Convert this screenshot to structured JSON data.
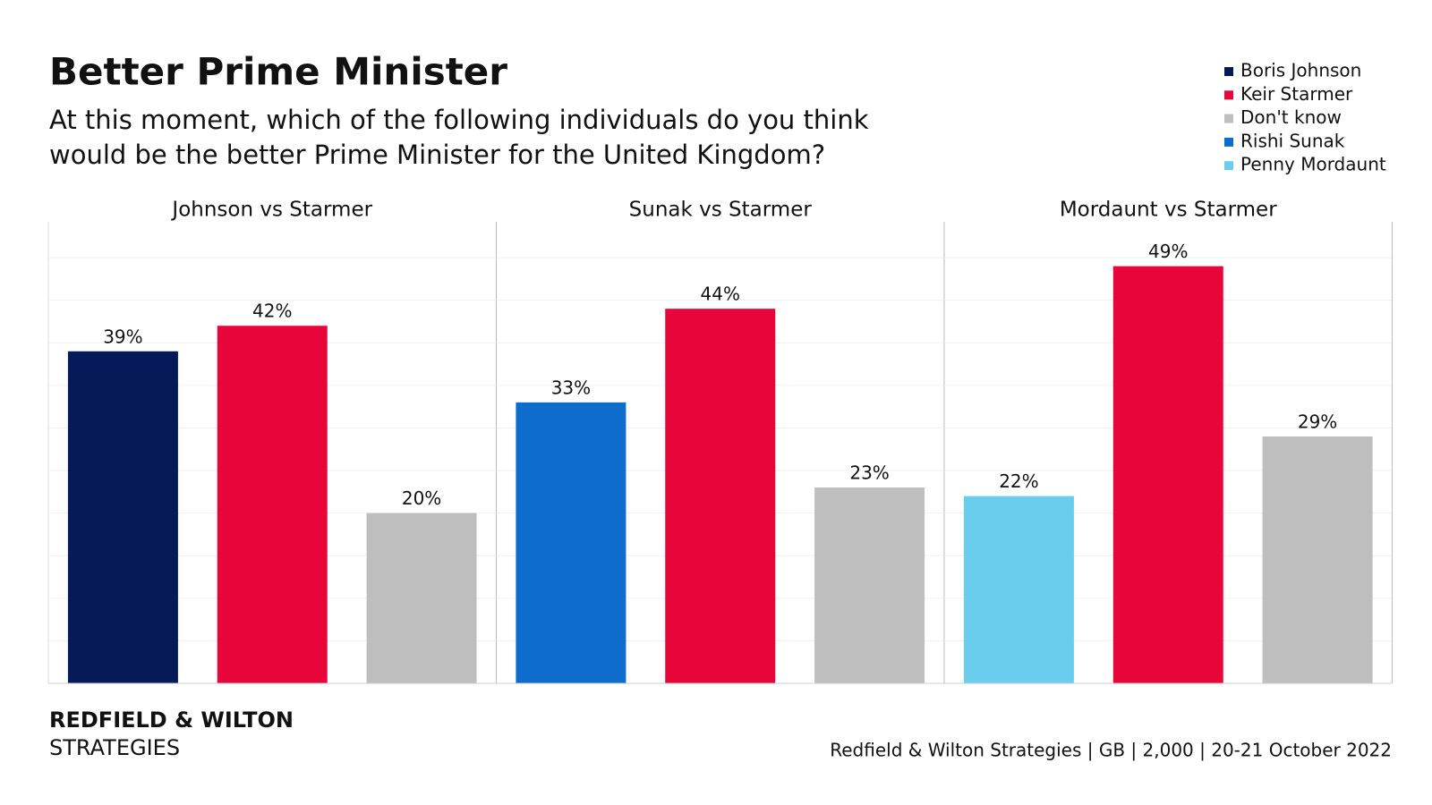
{
  "title": "Better Prime Minister",
  "subtitle": [
    "At this moment, which of the following individuals do you think",
    "would be the better Prime Minister for the United Kingdom?"
  ],
  "brand": [
    "REDFIELD & WILTON",
    "STRATEGIES"
  ],
  "source": "Redfield & Wilton Strategies | GB | 2,000 | 20-21 October 2022",
  "chart_data": [
    {
      "type": "bar",
      "title": "Johnson vs Starmer",
      "categories": [
        null
      ],
      "series": [
        {
          "name": "Boris Johnson",
          "color": "#061a5a",
          "values": [
            39
          ],
          "value_labels": [
            "39%"
          ]
        },
        {
          "name": "Keir Starmer",
          "color": "#e8053a",
          "values": [
            42
          ],
          "value_labels": [
            "42%"
          ]
        },
        {
          "name": "Don't know",
          "color": "#bfbebf",
          "values": [
            20
          ],
          "value_labels": [
            "20%"
          ]
        }
      ],
      "ylim": [
        0,
        54
      ],
      "yticks": [
        0,
        5,
        10,
        15,
        20,
        25,
        30,
        35,
        40,
        45,
        50
      ],
      "grid": true
    },
    {
      "type": "bar",
      "title": "Sunak vs Starmer",
      "categories": [
        null
      ],
      "series": [
        {
          "name": "Rishi Sunak",
          "color": "#0e6ccc",
          "values": [
            33
          ],
          "value_labels": [
            "33%"
          ]
        },
        {
          "name": "Keir Starmer",
          "color": "#e8053a",
          "values": [
            44
          ],
          "value_labels": [
            "44%"
          ]
        },
        {
          "name": "Don't know",
          "color": "#bfbebf",
          "values": [
            23
          ],
          "value_labels": [
            "23%"
          ]
        }
      ],
      "ylim": [
        0,
        54
      ],
      "yticks": [
        0,
        5,
        10,
        15,
        20,
        25,
        30,
        35,
        40,
        45,
        50
      ],
      "grid": true
    },
    {
      "type": "bar",
      "title": "Mordaunt vs Starmer",
      "categories": [
        null
      ],
      "series": [
        {
          "name": "Penny Mordaunt",
          "color": "#6acdee",
          "values": [
            22
          ],
          "value_labels": [
            "22%"
          ]
        },
        {
          "name": "Keir Starmer",
          "color": "#e8053a",
          "values": [
            49
          ],
          "value_labels": [
            "49%"
          ]
        },
        {
          "name": "Don't know",
          "color": "#bfbebf",
          "values": [
            29
          ],
          "value_labels": [
            "29%"
          ]
        }
      ],
      "ylim": [
        0,
        54
      ],
      "yticks": [
        0,
        5,
        10,
        15,
        20,
        25,
        30,
        35,
        40,
        45,
        50
      ],
      "grid": true
    }
  ]
}
